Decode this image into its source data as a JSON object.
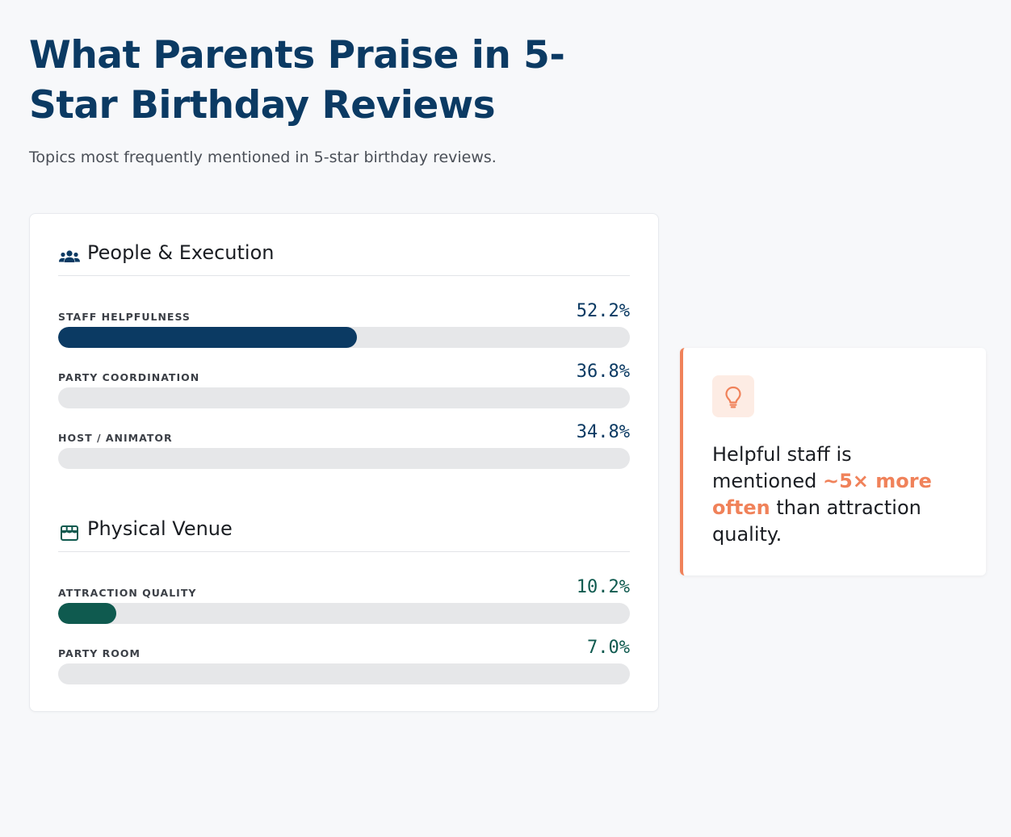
{
  "title": "What Parents Praise in 5-Star Birthday Reviews",
  "subtitle": "Topics most frequently mentioned in 5-star birthday reviews.",
  "colors": {
    "people": "#0b3a63",
    "venue": "#0f5a4f",
    "accent": "#f0825a"
  },
  "chart_data": {
    "type": "bar",
    "orientation": "horizontal",
    "xlim": [
      0,
      100
    ],
    "unit": "%",
    "groups": [
      {
        "name": "People & Execution",
        "icon": "people-icon",
        "color": "#0b3a63",
        "items": [
          {
            "label": "STAFF HELPFULNESS",
            "value": 52.2,
            "display": "52.2%",
            "filled": true
          },
          {
            "label": "PARTY COORDINATION",
            "value": 36.8,
            "display": "36.8%",
            "filled": false
          },
          {
            "label": "HOST / ANIMATOR",
            "value": 34.8,
            "display": "34.8%",
            "filled": false
          }
        ]
      },
      {
        "name": "Physical Venue",
        "icon": "storefront-icon",
        "color": "#0f5a4f",
        "items": [
          {
            "label": "ATTRACTION QUALITY",
            "value": 10.2,
            "display": "10.2%",
            "filled": true
          },
          {
            "label": "PARTY ROOM",
            "value": 7.0,
            "display": "7.0%",
            "filled": false
          }
        ]
      }
    ]
  },
  "insight": {
    "icon": "lightbulb-icon",
    "text_before": "Helpful staff is mentioned ",
    "highlight": "~5× more often",
    "text_after": " than attraction quality."
  }
}
